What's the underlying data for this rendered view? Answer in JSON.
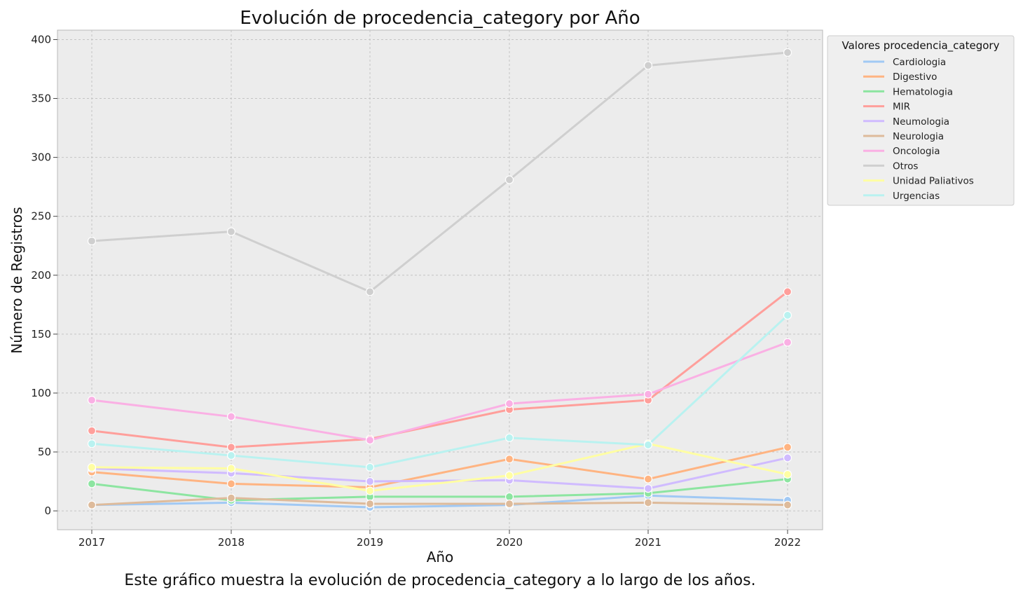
{
  "chart_data": {
    "type": "line",
    "title": "Evolución de procedencia_category por Año",
    "xlabel": "Año",
    "ylabel": "Número de Registros",
    "caption": "Este gráfico muestra la evolución de procedencia_category a lo largo de los años.",
    "x": [
      "2017",
      "2018",
      "2019",
      "2020",
      "2021",
      "2022"
    ],
    "yticks": [
      0,
      50,
      100,
      150,
      200,
      250,
      300,
      350,
      400
    ],
    "ylim": [
      -16,
      408
    ],
    "grid": true,
    "legend": {
      "title": "Valores procedencia_category",
      "position": "outside-right-top"
    },
    "series": [
      {
        "name": "Cardiologia",
        "color": "#a1c9f4",
        "values": [
          5,
          7,
          3,
          5,
          13,
          9
        ]
      },
      {
        "name": "Digestivo",
        "color": "#ffb482",
        "values": [
          33,
          23,
          20,
          44,
          27,
          54
        ]
      },
      {
        "name": "Hematologia",
        "color": "#8de5a1",
        "values": [
          23,
          9,
          12,
          12,
          15,
          27
        ]
      },
      {
        "name": "MIR",
        "color": "#ff9f9b",
        "values": [
          68,
          54,
          61,
          86,
          94,
          186
        ]
      },
      {
        "name": "Neumologia",
        "color": "#d0bbff",
        "values": [
          36,
          32,
          25,
          26,
          19,
          45
        ]
      },
      {
        "name": "Neurologia",
        "color": "#debb9b",
        "values": [
          5,
          11,
          6,
          6,
          7,
          5
        ]
      },
      {
        "name": "Oncologia",
        "color": "#fab0e4",
        "values": [
          94,
          80,
          60,
          91,
          99,
          143
        ]
      },
      {
        "name": "Otros",
        "color": "#cfcfcf",
        "values": [
          229,
          237,
          186,
          281,
          378,
          389
        ]
      },
      {
        "name": "Unidad Paliativos",
        "color": "#fffea3",
        "values": [
          37,
          36,
          17,
          30,
          57,
          31
        ]
      },
      {
        "name": "Urgencias",
        "color": "#b9f2f0",
        "values": [
          57,
          47,
          37,
          62,
          56,
          166
        ]
      }
    ]
  }
}
